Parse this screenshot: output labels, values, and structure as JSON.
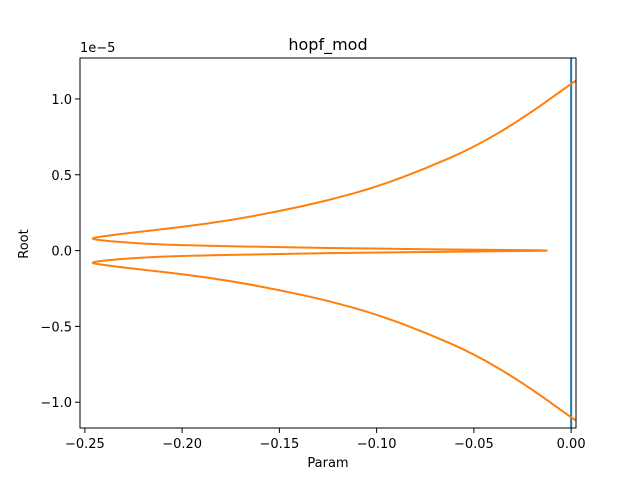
{
  "chart_data": {
    "type": "line",
    "title": "hopf_mod",
    "xlabel": "Param",
    "ylabel": "Root",
    "y_scale_label": "1e−5",
    "xlim": [
      -0.2525,
      0.0025
    ],
    "ylim": [
      -1.17e-05,
      1.27e-05
    ],
    "grid": false,
    "legend": "none",
    "x_ticks": [
      {
        "value": -0.25,
        "label": "−0.25"
      },
      {
        "value": -0.2,
        "label": "−0.20"
      },
      {
        "value": -0.15,
        "label": "−0.15"
      },
      {
        "value": -0.1,
        "label": "−0.10"
      },
      {
        "value": -0.05,
        "label": "−0.05"
      },
      {
        "value": 0.0,
        "label": "0.00"
      }
    ],
    "y_ticks": [
      {
        "value": 1e-05,
        "label": "1.0"
      },
      {
        "value": 5e-06,
        "label": "0.5"
      },
      {
        "value": 0.0,
        "label": "0.0"
      },
      {
        "value": -5e-06,
        "label": "−0.5"
      },
      {
        "value": -1e-05,
        "label": "−1.0"
      }
    ],
    "series": [
      {
        "color": "#1f77b4",
        "points": [
          [
            0.0,
            -1.17e-05
          ],
          [
            0.0,
            1.27e-05
          ]
        ]
      },
      {
        "color": "#ff7f0e",
        "points": [
          [
            0.0025,
            1.12e-05
          ],
          [
            0.0,
            1.1e-05
          ],
          [
            -0.025,
            8.7e-06
          ],
          [
            -0.05,
            6.8e-06
          ],
          [
            -0.075,
            5.4e-06
          ],
          [
            -0.1,
            4.2e-06
          ],
          [
            -0.125,
            3.3e-06
          ],
          [
            -0.15,
            2.6e-06
          ],
          [
            -0.175,
            2e-06
          ],
          [
            -0.2,
            1.55e-06
          ],
          [
            -0.225,
            1.2e-06
          ],
          [
            -0.24,
            9.5e-07
          ],
          [
            -0.248,
            8e-07
          ],
          [
            -0.24,
            6.5e-07
          ],
          [
            -0.22,
            4.5e-07
          ],
          [
            -0.2,
            3.5e-07
          ],
          [
            -0.15,
            2.2e-07
          ],
          [
            -0.1,
            1.2e-07
          ],
          [
            -0.05,
            6e-08
          ],
          [
            0.0,
            0.0
          ],
          [
            -0.05,
            -6e-08
          ],
          [
            -0.1,
            -1.2e-07
          ],
          [
            -0.15,
            -2.2e-07
          ],
          [
            -0.2,
            -3.5e-07
          ],
          [
            -0.22,
            -4.5e-07
          ],
          [
            -0.24,
            -6.5e-07
          ],
          [
            -0.248,
            -8e-07
          ],
          [
            -0.24,
            -9.5e-07
          ],
          [
            -0.225,
            -1.2e-06
          ],
          [
            -0.2,
            -1.55e-06
          ],
          [
            -0.175,
            -2e-06
          ],
          [
            -0.15,
            -2.6e-06
          ],
          [
            -0.125,
            -3.3e-06
          ],
          [
            -0.1,
            -4.2e-06
          ],
          [
            -0.075,
            -5.4e-06
          ],
          [
            -0.05,
            -6.8e-06
          ],
          [
            -0.025,
            -8.7e-06
          ],
          [
            0.0,
            -1.1e-05
          ],
          [
            0.0025,
            -1.12e-05
          ]
        ]
      }
    ]
  }
}
